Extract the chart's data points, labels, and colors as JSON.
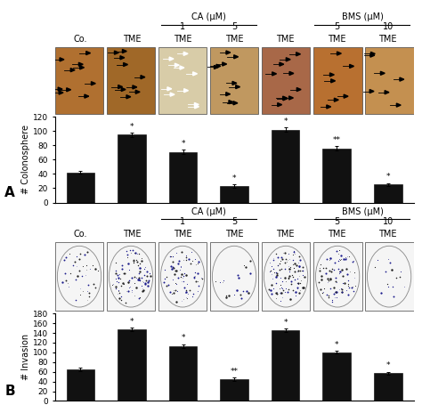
{
  "panel_A": {
    "bar_values": [
      42,
      95,
      71,
      23,
      102,
      76,
      25
    ],
    "bar_errors": [
      2,
      3,
      3,
      2,
      3,
      3,
      2
    ],
    "bar_color": "#111111",
    "ylabel": "# Colonosphere",
    "ylim": [
      0,
      120
    ],
    "yticks": [
      0,
      20,
      40,
      60,
      80,
      100,
      120
    ],
    "label": "A",
    "annotations": [
      "",
      "*",
      "*",
      "*",
      "*",
      "**",
      "*"
    ],
    "header_CA": "CA (μM)",
    "header_BMS": "BMS (μM)",
    "col_labels": [
      "Co.",
      "TME",
      "TME",
      "TME",
      "TME",
      "TME",
      "TME"
    ],
    "ca_sub": [
      "1",
      "5"
    ],
    "bms_sub": [
      "5",
      "10"
    ],
    "image_bg_colors": [
      "#b07030",
      "#a06828",
      "#d8cca8",
      "#c09860",
      "#a86848",
      "#b87030",
      "#c49050"
    ],
    "white_arrows_idx": 2
  },
  "panel_B": {
    "bar_values": [
      65,
      147,
      113,
      45,
      145,
      100,
      57
    ],
    "bar_errors": [
      3,
      4,
      4,
      3,
      4,
      3,
      3
    ],
    "bar_color": "#111111",
    "ylabel": "# Invasion",
    "ylim": [
      0,
      180
    ],
    "yticks": [
      0,
      20,
      40,
      60,
      80,
      100,
      120,
      140,
      160,
      180
    ],
    "label": "B",
    "annotations": [
      "",
      "*",
      "*",
      "**",
      "*",
      "*",
      "*"
    ],
    "header_CA": "CA (μM)",
    "header_BMS": "BMS (μM)",
    "col_labels": [
      "Co.",
      "TME",
      "TME",
      "TME",
      "TME",
      "TME",
      "TME"
    ],
    "ca_sub": [
      "1",
      "5"
    ],
    "bms_sub": [
      "5",
      "10"
    ],
    "image_bg_colors": [
      "#f5f5f5",
      "#f5f5f5",
      "#f5f5f5",
      "#f5f5f5",
      "#f5f5f5",
      "#f5f5f5",
      "#f5f5f5"
    ],
    "dot_counts": [
      40,
      100,
      80,
      20,
      120,
      90,
      15
    ],
    "white_arrows_idx": -1
  },
  "fig_bg": "#ffffff",
  "bar_width": 0.55
}
